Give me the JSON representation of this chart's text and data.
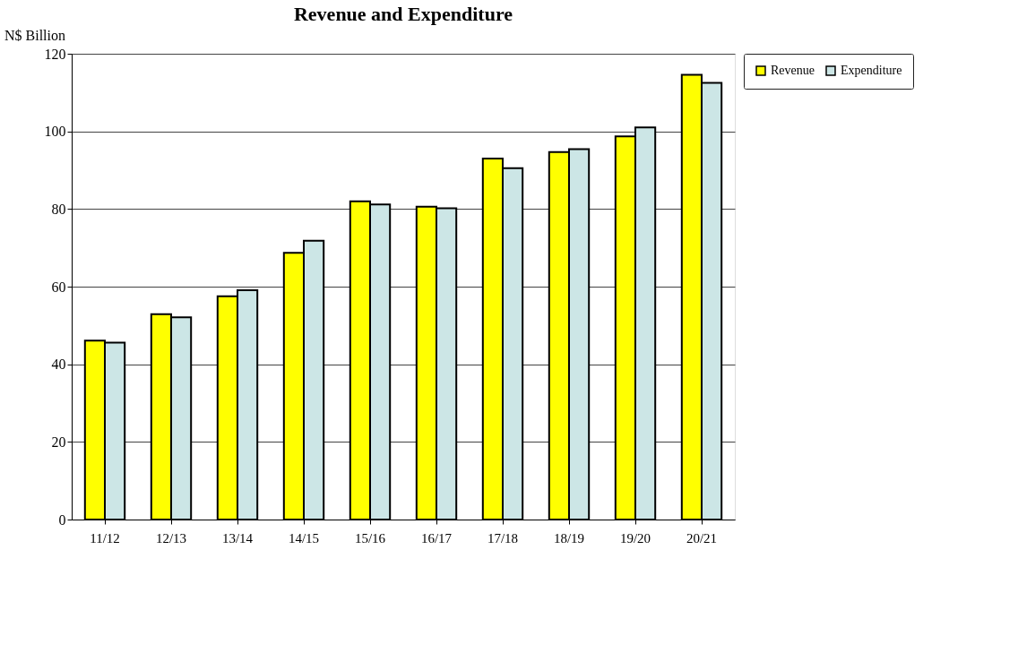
{
  "chart_data": {
    "type": "bar",
    "title": "Revenue and Expenditure",
    "ylabel": "N$ Billion",
    "categories": [
      "11/12",
      "12/13",
      "13/14",
      "14/15",
      "15/16",
      "16/17",
      "17/18",
      "18/19",
      "19/20",
      "20/21"
    ],
    "series": [
      {
        "name": "Revenue",
        "color": "#ffff00",
        "values": [
          46.1,
          52.9,
          57.5,
          68.7,
          82.0,
          80.6,
          93.0,
          94.7,
          98.7,
          114.6
        ]
      },
      {
        "name": "Expenditure",
        "color": "#cce6e6",
        "values": [
          45.6,
          52.1,
          59.1,
          71.8,
          81.2,
          80.2,
          90.5,
          95.4,
          101.0,
          112.5
        ]
      }
    ],
    "ylim": [
      0,
      120
    ],
    "yticks": [
      0,
      20,
      40,
      60,
      80,
      100,
      120
    ],
    "grid": "y",
    "legend": "right"
  }
}
